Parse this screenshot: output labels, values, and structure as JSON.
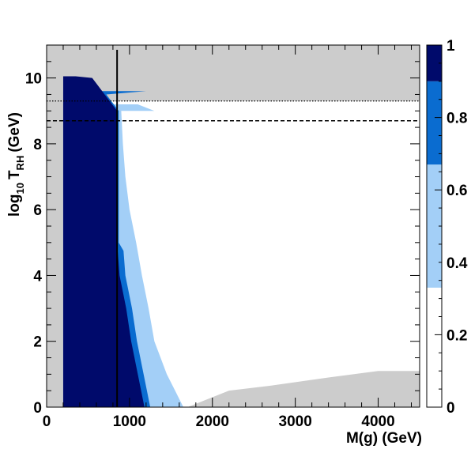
{
  "chart_data": {
    "type": "heatmap",
    "xlabel": "M(g) (GeV)",
    "ylabel_main": "log",
    "ylabel_sub10": "10",
    "ylabel_T": "T",
    "ylabel_subRH": "RH",
    "ylabel_unit": "(GeV)",
    "xlim": [
      0,
      4500
    ],
    "ylim": [
      0,
      11
    ],
    "x_ticks": [
      0,
      1000,
      2000,
      3000,
      4000
    ],
    "y_ticks": [
      0,
      2,
      4,
      6,
      8,
      10
    ],
    "colorbar": {
      "zlim": [
        0,
        1
      ],
      "ticks": [
        0,
        0.2,
        0.4,
        0.6,
        0.8,
        1
      ],
      "tick_labels": [
        "0",
        "0.2",
        "0.4",
        "0.6",
        "0.8",
        "1"
      ],
      "levels": [
        {
          "from": 0.0,
          "to": 0.33,
          "color": "#ffffff"
        },
        {
          "from": 0.33,
          "to": 0.67,
          "color": "#a3cff7"
        },
        {
          "from": 0.67,
          "to": 0.9,
          "color": "#0a6cd0"
        },
        {
          "from": 0.9,
          "to": 1.0,
          "color": "#000a6b"
        }
      ]
    },
    "colors": {
      "excluded": "#cccccc",
      "low": "#ffffff",
      "mid": "#a3cff7",
      "high": "#0a6cd0",
      "full": "#000a6b"
    },
    "vertical_line_x": 850,
    "horizontal_dashed_y": 8.7,
    "horizontal_dotted_y": 9.3,
    "regions": {
      "excluded_left_x_max": 200,
      "full_band_y": [
        [
          0,
          1180
        ],
        [
          1,
          1100
        ],
        [
          2,
          1020
        ],
        [
          3,
          960
        ],
        [
          4,
          880
        ],
        [
          5,
          850
        ],
        [
          6,
          850
        ],
        [
          7,
          850
        ],
        [
          8,
          850
        ],
        [
          9,
          850
        ],
        [
          10,
          550
        ]
      ],
      "mid_band_edge_y": [
        [
          0,
          1650
        ],
        [
          1,
          1450
        ],
        [
          2,
          1300
        ],
        [
          3,
          1230
        ],
        [
          4,
          1150
        ],
        [
          5,
          1080
        ],
        [
          6,
          1000
        ],
        [
          7,
          950
        ],
        [
          8,
          920
        ],
        [
          9,
          900
        ]
      ]
    }
  }
}
